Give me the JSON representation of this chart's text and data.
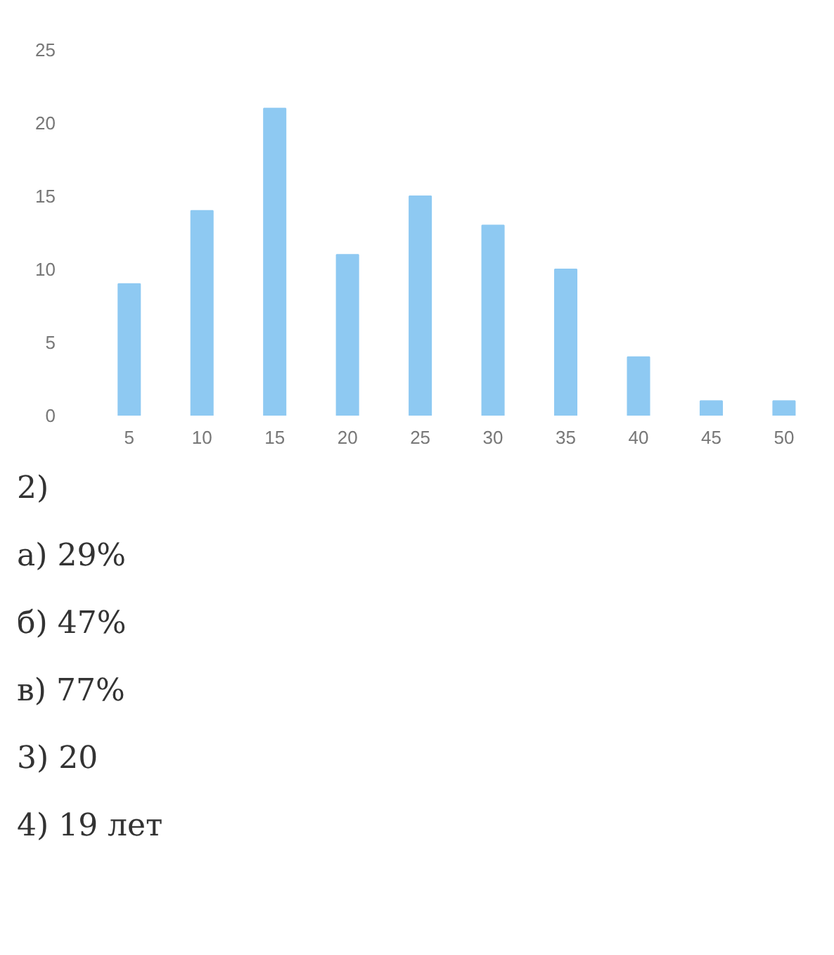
{
  "chart_data": {
    "type": "bar",
    "categories": [
      "5",
      "10",
      "15",
      "20",
      "25",
      "30",
      "35",
      "40",
      "45",
      "50"
    ],
    "values": [
      9,
      14,
      21,
      11,
      15,
      13,
      10,
      4,
      1,
      1
    ],
    "color": "#8ec9f2",
    "ylim": [
      0,
      25
    ],
    "yticks": [
      0,
      5,
      10,
      15,
      20,
      25
    ],
    "grid": false,
    "annotations": [
      "2)",
      "а) 29%",
      "б) 47%",
      "в) 77%",
      "3) 20",
      "4) 19 лет"
    ]
  }
}
